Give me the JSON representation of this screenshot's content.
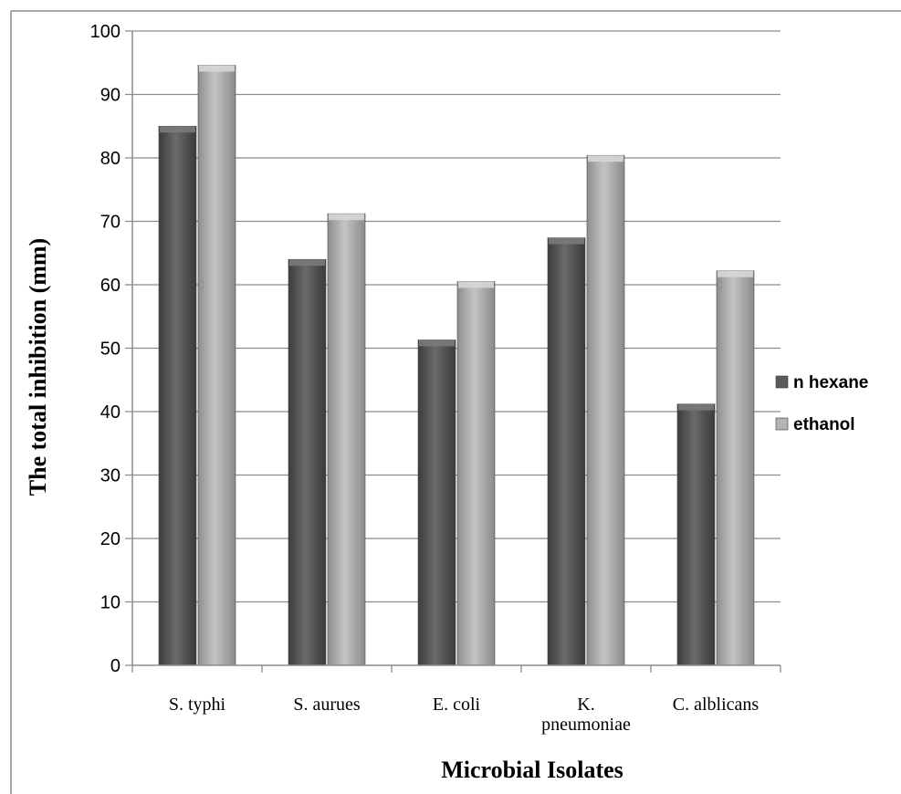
{
  "chart_data": {
    "type": "bar",
    "title": "",
    "xlabel": "Microbial Isolates",
    "ylabel": "The total inhibition (mm)",
    "categories": [
      [
        "S. typhi"
      ],
      [
        "S. aurues"
      ],
      [
        "E. coli"
      ],
      [
        "K.",
        "pneumoniae"
      ],
      [
        "C. alblicans"
      ]
    ],
    "series": [
      {
        "name": "n hexane",
        "values": [
          85,
          64,
          51.3,
          67.4,
          41.2
        ],
        "color": "#5f5f5f"
      },
      {
        "name": "ethanol",
        "values": [
          94.6,
          71.2,
          60.5,
          80.4,
          62.2
        ],
        "color": "#b4b4b4"
      }
    ],
    "ylim": [
      0,
      100
    ],
    "yticks": [
      0,
      10,
      20,
      30,
      40,
      50,
      60,
      70,
      80,
      90,
      100
    ],
    "grid": true,
    "legend_position": "right"
  }
}
